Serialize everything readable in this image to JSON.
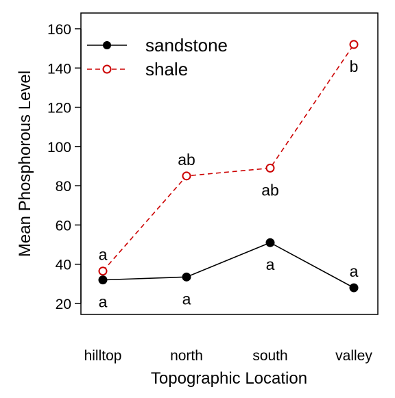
{
  "chart_data": {
    "type": "line",
    "title": "",
    "xlabel": "Topographic Location",
    "ylabel": "Mean Phosphorous Level",
    "categories": [
      "hilltop",
      "north",
      "south",
      "valley"
    ],
    "ylim": [
      15,
      165
    ],
    "yticks": [
      "20",
      "40",
      "60",
      "80",
      "100",
      "120",
      "140",
      "160"
    ],
    "grid": false,
    "legend_position": "top-left",
    "series": [
      {
        "name": "sandstone",
        "values": [
          32,
          33.5,
          51,
          28
        ],
        "color": "#000000",
        "line_style": "solid",
        "marker": "filled-circle",
        "letters": [
          "a",
          "a",
          "a",
          "a"
        ],
        "letter_positions": [
          "below",
          "below",
          "below",
          "above"
        ]
      },
      {
        "name": "shale",
        "values": [
          36.5,
          85,
          89,
          152
        ],
        "color": "#cc0000",
        "line_style": "dashed",
        "marker": "open-circle",
        "letters": [
          "a",
          "ab",
          "ab",
          "b"
        ],
        "letter_positions": [
          "above",
          "above",
          "below",
          "below"
        ]
      }
    ]
  }
}
